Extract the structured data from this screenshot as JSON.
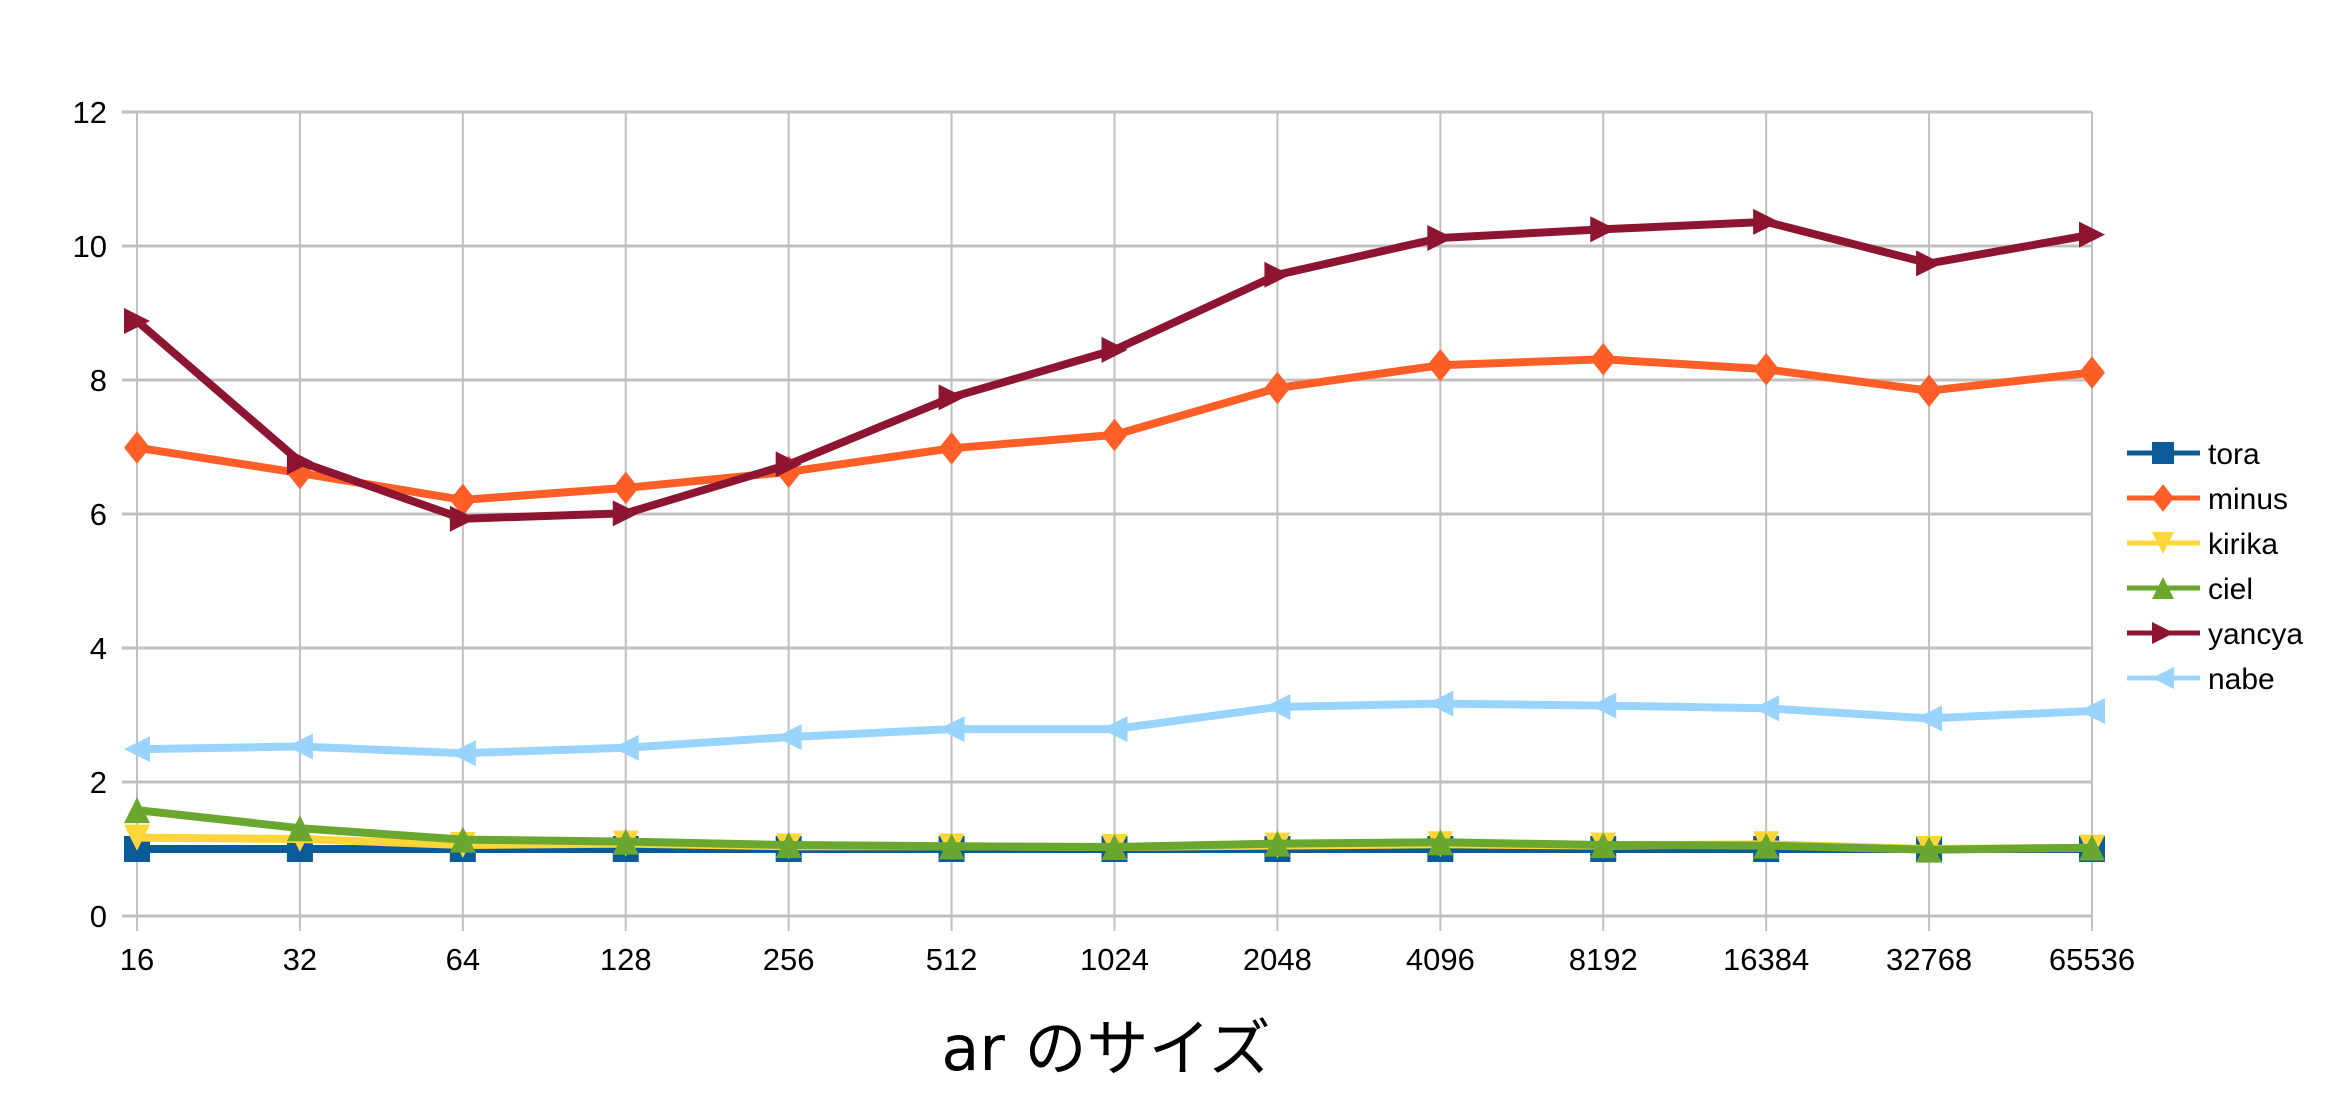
{
  "chart_data": {
    "type": "line",
    "title": "",
    "xlabel": "ar のサイズ",
    "ylabel": "",
    "ylim": [
      0,
      12
    ],
    "yticks": [
      0,
      2,
      4,
      6,
      8,
      10,
      12
    ],
    "grid": true,
    "legend_position": "right",
    "categories": [
      "16",
      "32",
      "64",
      "128",
      "256",
      "512",
      "1024",
      "2048",
      "4096",
      "8192",
      "16384",
      "32768",
      "65536"
    ],
    "series": [
      {
        "name": "tora",
        "color": "#0B5B98",
        "marker": "square",
        "values": [
          1.0,
          1.0,
          1.0,
          1.0,
          1.0,
          1.0,
          1.0,
          1.0,
          1.0,
          1.0,
          1.0,
          1.0,
          1.0
        ]
      },
      {
        "name": "minus",
        "color": "#FF5F26",
        "marker": "diamond",
        "values": [
          6.99,
          6.61,
          6.21,
          6.39,
          6.63,
          6.98,
          7.18,
          7.88,
          8.22,
          8.31,
          8.16,
          7.84,
          8.11
        ]
      },
      {
        "name": "kirika",
        "color": "#FFD63A",
        "marker": "triangle-down",
        "values": [
          1.17,
          1.15,
          1.06,
          1.08,
          1.04,
          1.04,
          1.03,
          1.05,
          1.07,
          1.05,
          1.07,
          1.0,
          1.02
        ]
      },
      {
        "name": "ciel",
        "color": "#6AA72E",
        "marker": "triangle-up",
        "values": [
          1.58,
          1.31,
          1.14,
          1.11,
          1.06,
          1.04,
          1.03,
          1.08,
          1.1,
          1.06,
          1.05,
          0.99,
          1.02
        ]
      },
      {
        "name": "yancya",
        "color": "#8E1531",
        "marker": "triangle-right",
        "values": [
          8.88,
          6.78,
          5.93,
          6.01,
          6.74,
          7.74,
          8.45,
          9.57,
          10.12,
          10.25,
          10.36,
          9.74,
          10.17
        ]
      },
      {
        "name": "nabe",
        "color": "#99D4FF",
        "marker": "triangle-left",
        "values": [
          2.49,
          2.53,
          2.43,
          2.51,
          2.67,
          2.79,
          2.79,
          3.12,
          3.17,
          3.14,
          3.1,
          2.95,
          3.06
        ]
      }
    ]
  },
  "style": {
    "grid_color": "#C0C0C0",
    "text_color": "#000000",
    "background": "#FFFFFF"
  }
}
